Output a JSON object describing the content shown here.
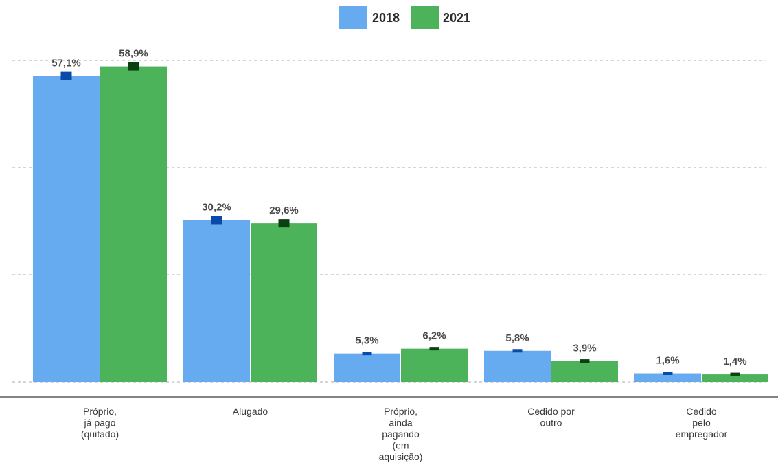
{
  "chart_data": {
    "type": "bar",
    "categories": [
      [
        "Próprio,",
        "já pago",
        "(quitado)"
      ],
      [
        "Alugado"
      ],
      [
        "Próprio,",
        "ainda",
        "pagando",
        "(em",
        "aquisição)"
      ],
      [
        "Cedido por",
        "outro"
      ],
      [
        "Cedido",
        "pelo",
        "empregador"
      ]
    ],
    "series": [
      {
        "name": "2018",
        "values": [
          57.1,
          30.2,
          5.3,
          5.8,
          1.6
        ],
        "labels": [
          "57,1%",
          "30,2%",
          "5,3%",
          "5,8%",
          "1,6%"
        ],
        "color": "#66aaf0",
        "marker_color": "#0a4aa8"
      },
      {
        "name": "2021",
        "values": [
          58.9,
          29.6,
          6.2,
          3.9,
          1.4
        ],
        "labels": [
          "58,9%",
          "29,6%",
          "6,2%",
          "3,9%",
          "1,4%"
        ],
        "color": "#4db35a",
        "marker_color": "#0b4010"
      }
    ],
    "ylim": [
      0,
      60
    ],
    "grid": true,
    "legend": "top-center",
    "error_markers": true
  }
}
